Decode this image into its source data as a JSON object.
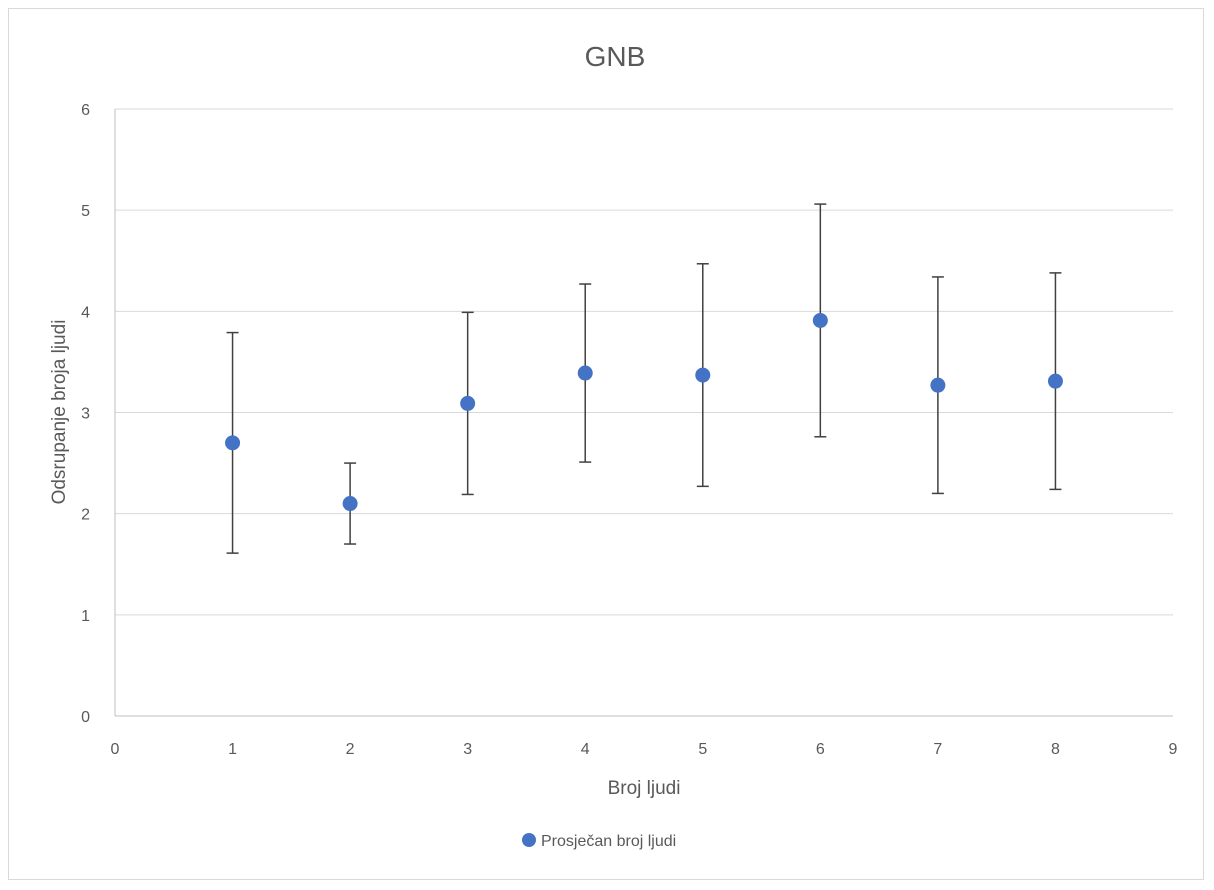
{
  "chart_data": {
    "type": "scatter",
    "title": "GNB",
    "xlabel": "Broj ljudi",
    "ylabel": "Odsrupanje broja ljudi",
    "xlim": [
      0,
      9
    ],
    "ylim": [
      0,
      6
    ],
    "x_ticks": [
      "0",
      "1",
      "2",
      "3",
      "4",
      "5",
      "6",
      "7",
      "8",
      "9"
    ],
    "y_ticks": [
      "0",
      "1",
      "2",
      "3",
      "4",
      "5",
      "6"
    ],
    "grid": "horizontal",
    "legend_position": "bottom",
    "series": [
      {
        "name": "Prosječan broj ljudi",
        "color": "#4472c4",
        "points": [
          {
            "x": 1,
            "y": 2.7,
            "err_low": 1.61,
            "err_high": 3.79
          },
          {
            "x": 2,
            "y": 2.1,
            "err_low": 1.7,
            "err_high": 2.5
          },
          {
            "x": 3,
            "y": 3.09,
            "err_low": 2.19,
            "err_high": 3.99
          },
          {
            "x": 4,
            "y": 3.39,
            "err_low": 2.51,
            "err_high": 4.27
          },
          {
            "x": 5,
            "y": 3.37,
            "err_low": 2.27,
            "err_high": 4.47
          },
          {
            "x": 6,
            "y": 3.91,
            "err_low": 2.76,
            "err_high": 5.06
          },
          {
            "x": 7,
            "y": 3.27,
            "err_low": 2.2,
            "err_high": 4.34
          },
          {
            "x": 8,
            "y": 3.31,
            "err_low": 2.24,
            "err_high": 4.38
          }
        ]
      }
    ],
    "colors": {
      "gridline": "#d9d9d9",
      "axis": "#bfbfbf",
      "error_bar": "#404040",
      "text": "#595959"
    }
  }
}
